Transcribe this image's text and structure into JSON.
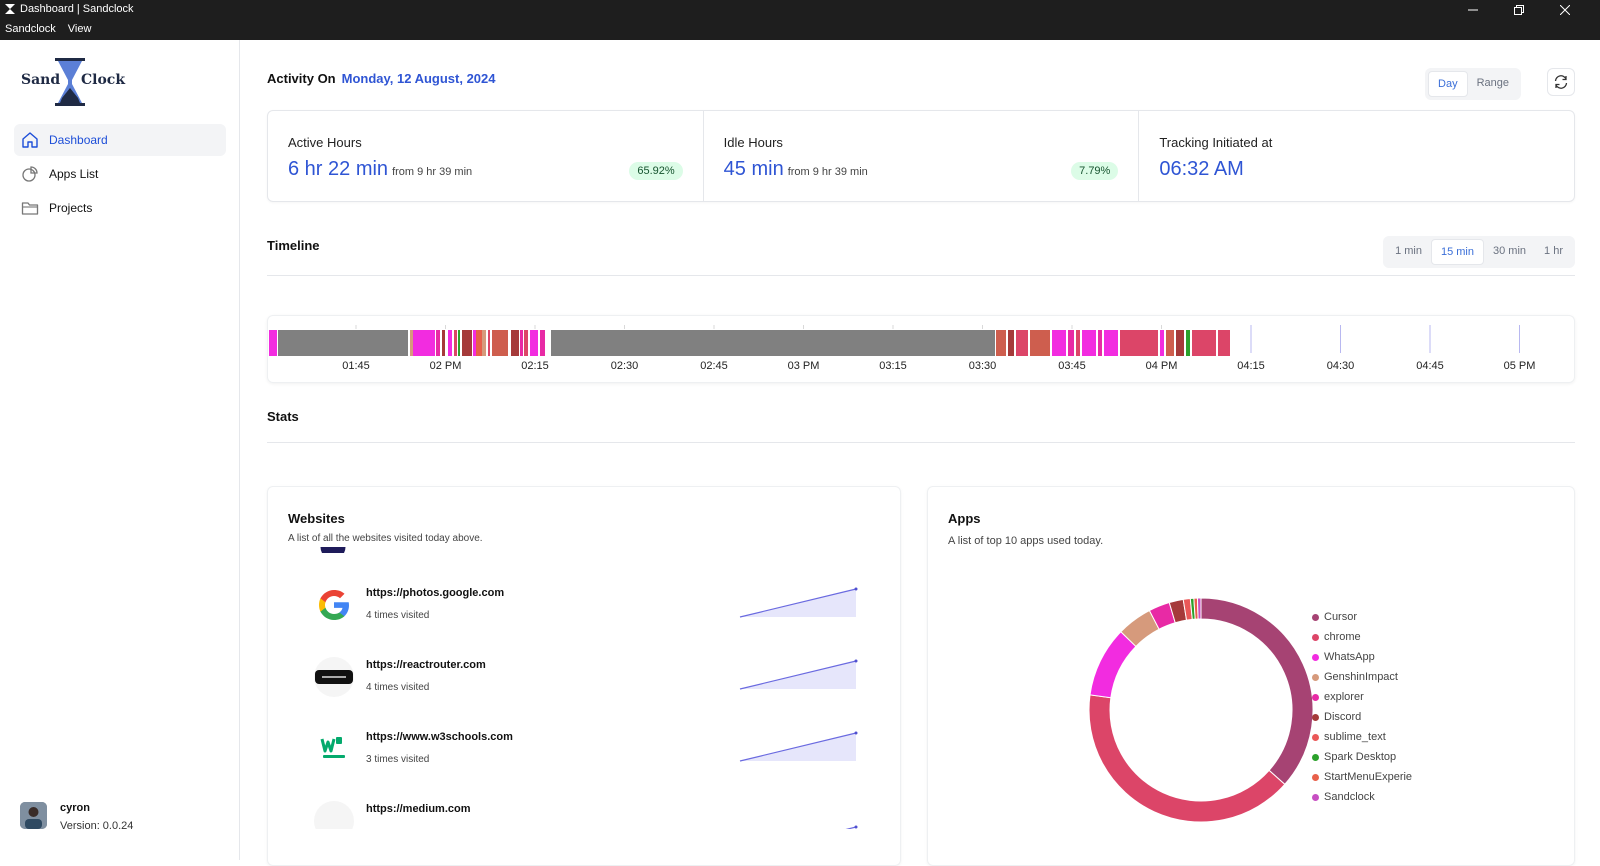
{
  "window": {
    "title": "Dashboard | Sandclock",
    "menu": [
      "Sandclock",
      "View"
    ]
  },
  "logo": {
    "left": "Sand",
    "right": "Clock"
  },
  "sidebar": {
    "items": [
      {
        "label": "Dashboard",
        "icon": "home-icon",
        "active": true
      },
      {
        "label": "Apps List",
        "icon": "pie-chart-icon",
        "active": false
      },
      {
        "label": "Projects",
        "icon": "folder-icon",
        "active": false
      }
    ],
    "user": {
      "name": "cyron",
      "version": "Version: 0.0.24"
    }
  },
  "header": {
    "label": "Activity On",
    "date": "Monday, 12 August, 2024",
    "view_options": [
      "Day",
      "Range"
    ],
    "view_selected": "Day"
  },
  "cards": {
    "active": {
      "label": "Active Hours",
      "value": "6 hr 22 min",
      "from": "from 9 hr 39 min",
      "badge": "65.92%"
    },
    "idle": {
      "label": "Idle Hours",
      "value": "45 min",
      "from": "from 9 hr 39 min",
      "badge": "7.79%"
    },
    "tracking": {
      "label": "Tracking Initiated at",
      "value": "06:32 AM"
    }
  },
  "timeline": {
    "title": "Timeline",
    "granularity": [
      "1 min",
      "15 min",
      "30 min",
      "1 hr"
    ],
    "granularity_selected": "15 min",
    "ticks": [
      "01:45",
      "02 PM",
      "02:15",
      "02:30",
      "02:45",
      "03 PM",
      "03:15",
      "03:30",
      "03:45",
      "04 PM",
      "04:15",
      "04:30",
      "04:45",
      "05 PM"
    ]
  },
  "stats": {
    "title": "Stats"
  },
  "websites": {
    "title": "Websites",
    "description": "A list of all the websites visited today above.",
    "items": [
      {
        "url": "https://photos.google.com",
        "visits": "4 times visited",
        "icon": "google-icon"
      },
      {
        "url": "https://reactrouter.com",
        "visits": "4 times visited",
        "icon": "react-router-icon"
      },
      {
        "url": "https://www.w3schools.com",
        "visits": "3 times visited",
        "icon": "w3schools-icon"
      },
      {
        "url": "https://medium.com",
        "visits": "",
        "icon": "medium-icon"
      }
    ]
  },
  "apps": {
    "title": "Apps",
    "description": "A list of top 10 apps used today.",
    "legend": [
      {
        "name": "Cursor",
        "color": "#a64373"
      },
      {
        "name": "chrome",
        "color": "#dc4568"
      },
      {
        "name": "WhatsApp",
        "color": "#f22ce0"
      },
      {
        "name": "GenshinImpact",
        "color": "#d69a7c"
      },
      {
        "name": "explorer",
        "color": "#e82aa5"
      },
      {
        "name": "Discord",
        "color": "#a53a3a"
      },
      {
        "name": "sublime_text",
        "color": "#ea5858"
      },
      {
        "name": "Spark Desktop",
        "color": "#2ba12b"
      },
      {
        "name": "StartMenuExperie",
        "color": "#e8604a"
      },
      {
        "name": "Sandclock",
        "color": "#c74fc2"
      }
    ]
  },
  "chart_data": {
    "type": "pie",
    "categories": [
      "Cursor",
      "chrome",
      "WhatsApp",
      "GenshinImpact",
      "explorer",
      "Discord",
      "sublime_text",
      "Spark Desktop",
      "StartMenuExperie",
      "Sandclock"
    ],
    "values": [
      36,
      40,
      10,
      5,
      3,
      2,
      1,
      0.5,
      0.5,
      0.5
    ],
    "unit": "percent of usage (estimated from donut)"
  }
}
